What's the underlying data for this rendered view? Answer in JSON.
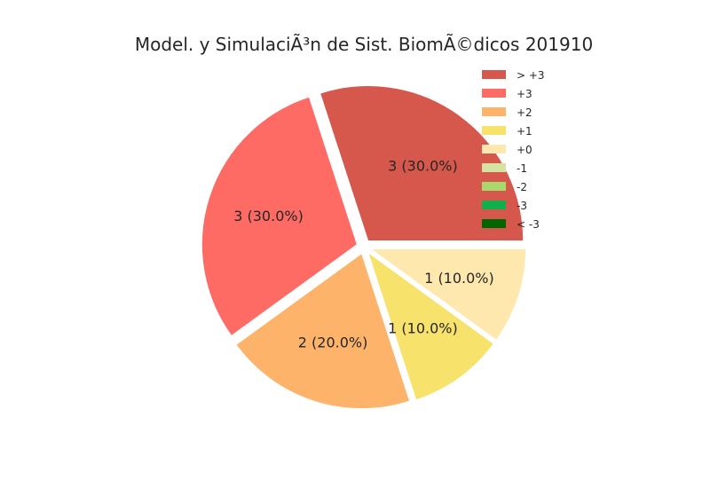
{
  "chart_data": {
    "type": "pie",
    "title": "Model. y SimulaciÃ³n de Sist. BiomÃ©dicos 201910",
    "categories": [
      "> +3",
      "+3",
      "+2",
      "+1",
      "+0",
      "-1",
      "-2",
      "-3",
      "< -3"
    ],
    "values": [
      3,
      3,
      2,
      1,
      1,
      0,
      0,
      0,
      0
    ],
    "slice_labels": [
      "3 (30.0%)",
      "3 (30.0%)",
      "2 (20.0%)",
      "1 (10.0%)",
      "1 (10.0%)",
      "",
      "",
      "",
      ""
    ],
    "colors": [
      "#d6574b",
      "#fd6b64",
      "#fdb46a",
      "#f7e26c",
      "#fee8ad",
      "#d6e2a1",
      "#a9d86c",
      "#11b04d",
      "#006700"
    ],
    "exploded": true,
    "legend_position": "top-right",
    "grid": false
  }
}
